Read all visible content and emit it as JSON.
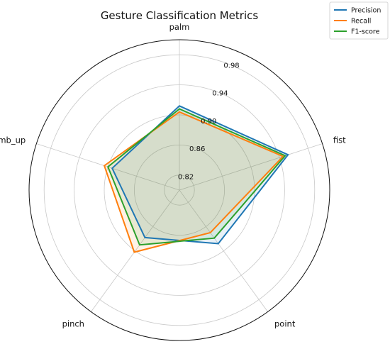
{
  "chart_data": {
    "type": "radar",
    "title": "Gesture Classification Metrics",
    "categories": [
      "palm",
      "fist",
      "point",
      "pinch",
      "thumb_up"
    ],
    "rlim": [
      0.8,
      1.0
    ],
    "rticks": [
      "0.82",
      "0.86",
      "0.90",
      "0.94",
      "0.98"
    ],
    "rtick_values": [
      0.82,
      0.86,
      0.9,
      0.94,
      0.98
    ],
    "grid": true,
    "legend_position": "top-right",
    "series": [
      {
        "name": "Precision",
        "values": [
          0.912,
          0.952,
          0.888,
          0.878,
          0.894
        ],
        "color": "#1f77b4"
      },
      {
        "name": "Recall",
        "values": [
          0.904,
          0.945,
          0.87,
          0.902,
          0.905
        ],
        "color": "#ff7f0e"
      },
      {
        "name": "F1-score",
        "values": [
          0.908,
          0.948,
          0.879,
          0.89,
          0.9
        ],
        "color": "#2ca02c"
      }
    ]
  }
}
